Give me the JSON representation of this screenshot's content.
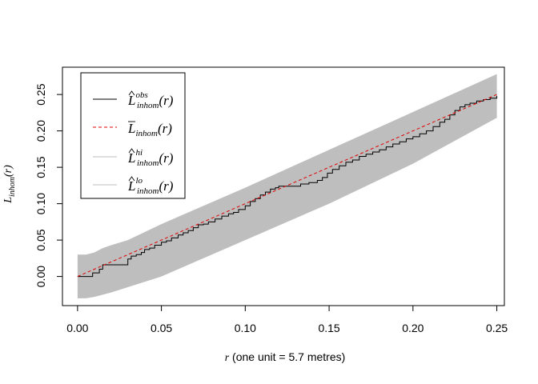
{
  "chart_data": {
    "type": "line",
    "title": "",
    "xlabel": {
      "symbol": "r",
      "text": " (one unit = 5.7 metres)"
    },
    "ylabel": {
      "symbol": "L",
      "sub": "inhom",
      "arg": "(r)"
    },
    "xlim": [
      -0.009,
      0.2545
    ],
    "ylim": [
      -0.04,
      0.2875
    ],
    "x_ticks": [
      0.0,
      0.05,
      0.1,
      0.15,
      0.2,
      0.25
    ],
    "x_tick_labels": [
      "0.00",
      "0.05",
      "0.10",
      "0.15",
      "0.20",
      "0.25"
    ],
    "y_ticks": [
      0.0,
      0.05,
      0.1,
      0.15,
      0.2,
      0.25
    ],
    "y_tick_labels": [
      "0.00",
      "0.05",
      "0.10",
      "0.15",
      "0.20",
      "0.25"
    ],
    "grid": false,
    "legend_position": "top-left",
    "legend": [
      {
        "base": "L",
        "hat": true,
        "bar": false,
        "sup": "obs",
        "sub": "inhom",
        "arg": "(r)",
        "style": "solid",
        "color": "#000000"
      },
      {
        "base": "L",
        "hat": false,
        "bar": true,
        "sup": "",
        "sub": "inhom",
        "arg": "(r)",
        "style": "dashed",
        "color": "#df0000"
      },
      {
        "base": "L",
        "hat": true,
        "bar": false,
        "sup": "hi",
        "sub": "inhom",
        "arg": "(r)",
        "style": "solid",
        "color": "#bebebe"
      },
      {
        "base": "L",
        "hat": true,
        "bar": false,
        "sup": "lo",
        "sub": "inhom",
        "arg": "(r)",
        "style": "solid",
        "color": "#bebebe"
      }
    ],
    "envelope": {
      "color": "#bebebe",
      "hi": {
        "x": [
          0.0,
          0.005,
          0.01,
          0.015,
          0.02,
          0.03,
          0.05,
          0.1,
          0.15,
          0.2,
          0.25
        ],
        "y": [
          0.03,
          0.03,
          0.033,
          0.039,
          0.043,
          0.05,
          0.072,
          0.122,
          0.174,
          0.226,
          0.278
        ]
      },
      "lo": {
        "x": [
          0.0,
          0.005,
          0.01,
          0.015,
          0.02,
          0.05,
          0.1,
          0.15,
          0.2,
          0.25
        ],
        "y": [
          -0.03,
          -0.03,
          -0.028,
          -0.025,
          -0.022,
          0.0,
          0.05,
          0.1,
          0.155,
          0.218
        ]
      }
    },
    "series": [
      {
        "name": "obs",
        "style": "step",
        "color": "#000000",
        "x": [
          0.0,
          0.007,
          0.009,
          0.011,
          0.013,
          0.015,
          0.03,
          0.032,
          0.035,
          0.038,
          0.04,
          0.043,
          0.046,
          0.05,
          0.053,
          0.056,
          0.06,
          0.063,
          0.066,
          0.069,
          0.072,
          0.075,
          0.078,
          0.082,
          0.086,
          0.09,
          0.093,
          0.096,
          0.1,
          0.103,
          0.106,
          0.109,
          0.112,
          0.115,
          0.118,
          0.12,
          0.123,
          0.128,
          0.133,
          0.138,
          0.143,
          0.146,
          0.149,
          0.152,
          0.156,
          0.16,
          0.164,
          0.168,
          0.172,
          0.176,
          0.18,
          0.184,
          0.188,
          0.192,
          0.196,
          0.2,
          0.204,
          0.208,
          0.212,
          0.216,
          0.219,
          0.222,
          0.225,
          0.228,
          0.231,
          0.234,
          0.238,
          0.242,
          0.246,
          0.25
        ],
        "y": [
          0.0,
          0.0,
          0.005,
          0.005,
          0.01,
          0.016,
          0.024,
          0.028,
          0.03,
          0.033,
          0.037,
          0.039,
          0.043,
          0.047,
          0.049,
          0.053,
          0.057,
          0.06,
          0.063,
          0.067,
          0.071,
          0.072,
          0.075,
          0.079,
          0.083,
          0.086,
          0.088,
          0.092,
          0.097,
          0.103,
          0.107,
          0.112,
          0.116,
          0.12,
          0.122,
          0.124,
          0.124,
          0.124,
          0.127,
          0.129,
          0.132,
          0.136,
          0.142,
          0.147,
          0.152,
          0.157,
          0.16,
          0.165,
          0.168,
          0.171,
          0.174,
          0.178,
          0.182,
          0.185,
          0.189,
          0.192,
          0.196,
          0.2,
          0.206,
          0.212,
          0.216,
          0.222,
          0.228,
          0.233,
          0.236,
          0.238,
          0.241,
          0.243,
          0.245,
          0.248
        ]
      },
      {
        "name": "theo",
        "style": "dashed",
        "color": "#df0000",
        "x": [
          0.0,
          0.25
        ],
        "y": [
          0.0,
          0.25
        ]
      }
    ]
  }
}
